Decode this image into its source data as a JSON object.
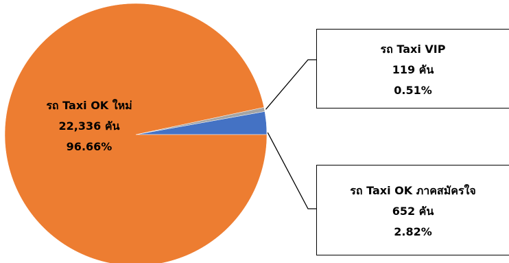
{
  "chart_data": {
    "type": "pie",
    "slices": [
      {
        "name": "รถ Taxi OK ใหม่",
        "count": 22336,
        "count_text": "22,336 คัน",
        "percent": 96.66,
        "percent_text": "96.66%",
        "color": "#ED7D31"
      },
      {
        "name": "รถ Taxi OK ภาคสมัครใจ",
        "count": 652,
        "count_text": "652 คัน",
        "percent": 2.82,
        "percent_text": "2.82%",
        "color": "#4472C4"
      },
      {
        "name": "รถ Taxi VIP",
        "count": 119,
        "count_text": "119 คัน",
        "percent": 0.51,
        "percent_text": "0.51%",
        "color": "#A5A5A5"
      }
    ],
    "start_angle_deg": 270,
    "direction": "counterclockwise"
  }
}
